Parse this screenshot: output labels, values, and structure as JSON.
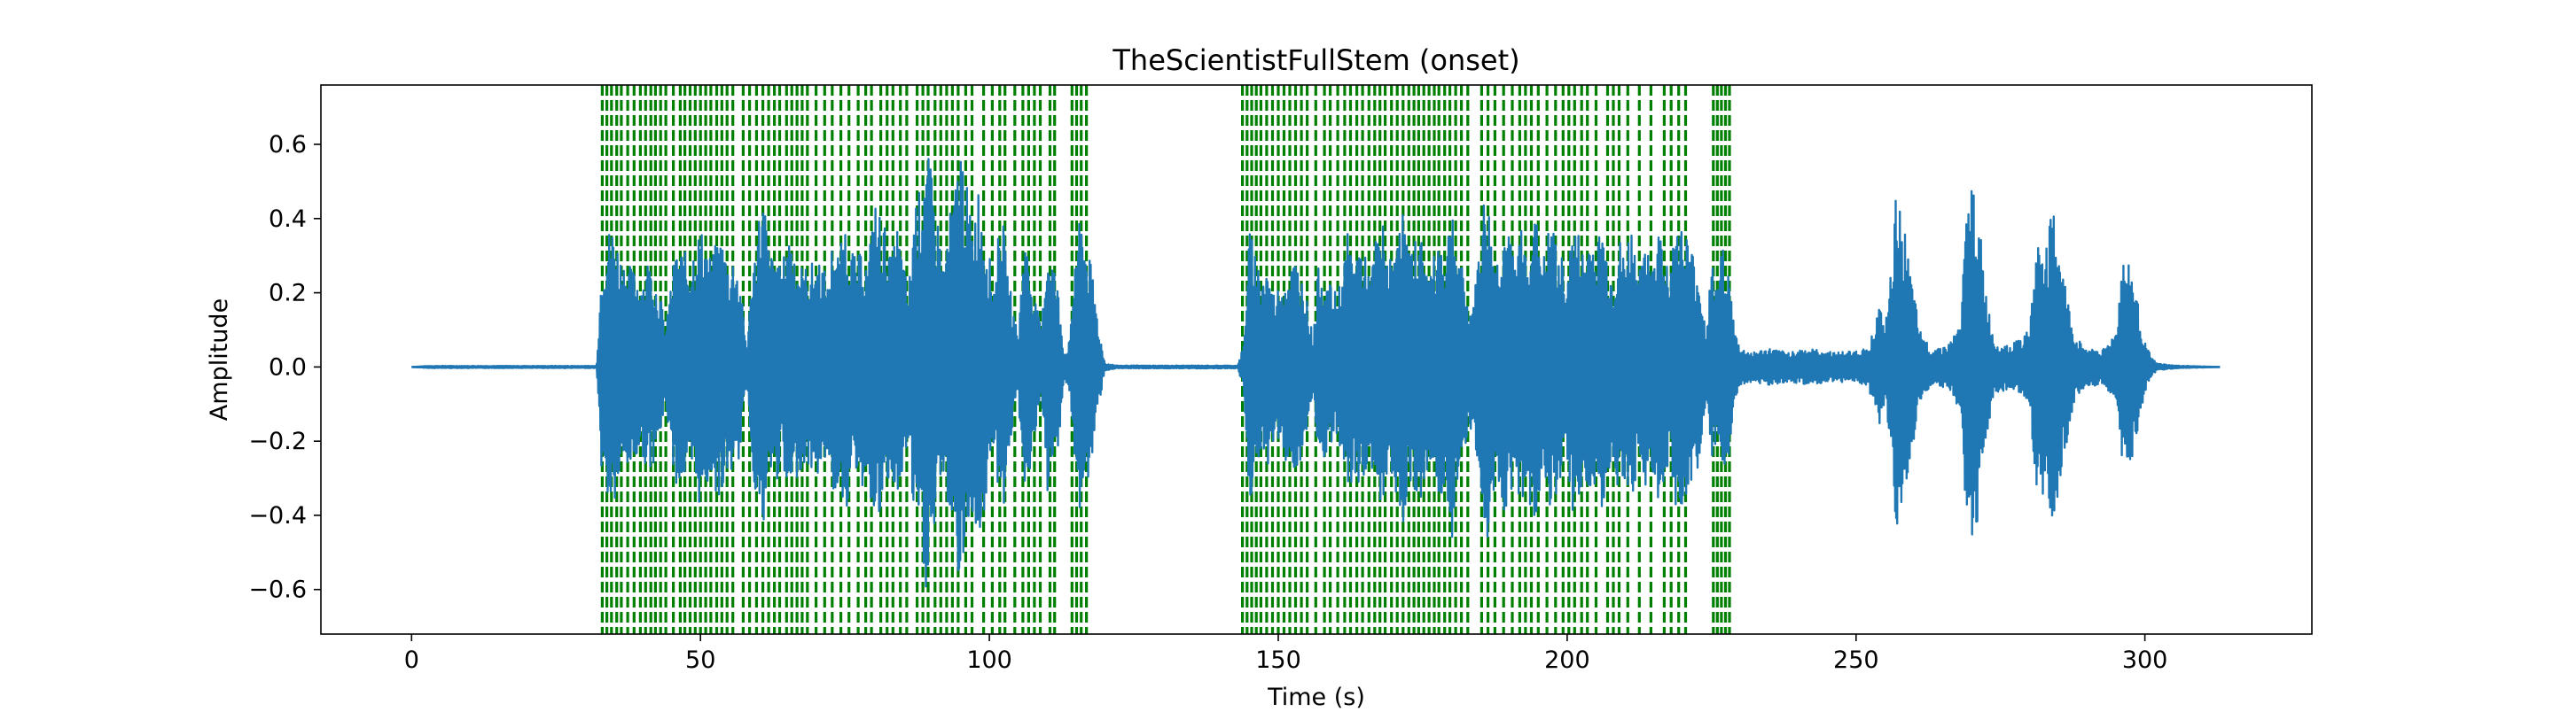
{
  "chart_data": {
    "type": "line",
    "title": "TheScientistFullStem (onset)",
    "xlabel": "Time (s)",
    "ylabel": "Amplitude",
    "xlim": [
      -15.7,
      328.9
    ],
    "ylim": [
      -0.72,
      0.76
    ],
    "xticks": [
      0,
      50,
      100,
      150,
      200,
      250,
      300
    ],
    "yticks": [
      -0.6,
      -0.4,
      -0.2,
      0.0,
      0.2,
      0.4,
      0.6
    ],
    "grid": false,
    "legend": "none",
    "colors": {
      "waveform": "#1f77b4",
      "onset": "#008000",
      "axes": "#000000"
    },
    "series": [
      {
        "kind": "waveform-envelope",
        "values": [
          [
            0,
            0.0
          ],
          [
            3,
            0.003
          ],
          [
            32,
            0.003
          ],
          [
            33,
            0.32
          ],
          [
            34,
            0.37
          ],
          [
            35,
            0.39
          ],
          [
            36,
            0.31
          ],
          [
            38,
            0.27
          ],
          [
            40,
            0.24
          ],
          [
            41,
            0.3
          ],
          [
            42,
            0.25
          ],
          [
            43,
            0.2
          ],
          [
            44,
            0.1
          ],
          [
            45,
            0.25
          ],
          [
            46,
            0.33
          ],
          [
            48,
            0.3
          ],
          [
            50,
            0.38
          ],
          [
            52,
            0.29
          ],
          [
            53,
            0.36
          ],
          [
            54,
            0.34
          ],
          [
            55,
            0.27
          ],
          [
            56,
            0.32
          ],
          [
            57,
            0.21
          ],
          [
            58,
            0.05
          ],
          [
            59,
            0.27
          ],
          [
            60,
            0.41
          ],
          [
            61,
            0.47
          ],
          [
            62,
            0.29
          ],
          [
            63,
            0.33
          ],
          [
            64,
            0.25
          ],
          [
            65,
            0.37
          ],
          [
            66,
            0.35
          ],
          [
            67,
            0.28
          ],
          [
            68,
            0.27
          ],
          [
            70,
            0.29
          ],
          [
            71,
            0.3
          ],
          [
            72,
            0.22
          ],
          [
            73,
            0.37
          ],
          [
            74,
            0.3
          ],
          [
            75,
            0.4
          ],
          [
            76,
            0.34
          ],
          [
            77,
            0.28
          ],
          [
            78,
            0.33
          ],
          [
            79,
            0.27
          ],
          [
            80,
            0.46
          ],
          [
            82,
            0.38
          ],
          [
            83,
            0.28
          ],
          [
            84,
            0.39
          ],
          [
            85,
            0.3
          ],
          [
            86,
            0.2
          ],
          [
            87,
            0.45
          ],
          [
            88,
            0.48
          ],
          [
            89,
            0.61
          ],
          [
            90,
            0.52
          ],
          [
            91,
            0.41
          ],
          [
            92,
            0.28
          ],
          [
            93,
            0.4
          ],
          [
            94,
            0.48
          ],
          [
            95,
            0.63
          ],
          [
            96,
            0.5
          ],
          [
            97,
            0.38
          ],
          [
            98,
            0.5
          ],
          [
            99,
            0.41
          ],
          [
            100,
            0.3
          ],
          [
            101,
            0.22
          ],
          [
            102,
            0.47
          ],
          [
            103,
            0.28
          ],
          [
            104,
            0.17
          ],
          [
            105,
            0.08
          ],
          [
            106,
            0.37
          ],
          [
            107,
            0.28
          ],
          [
            108,
            0.18
          ],
          [
            109,
            0.1
          ],
          [
            110,
            0.35
          ],
          [
            111,
            0.3
          ],
          [
            112,
            0.2
          ],
          [
            113,
            0.03
          ],
          [
            114,
            0.08
          ],
          [
            115,
            0.37
          ],
          [
            116,
            0.4
          ],
          [
            117,
            0.32
          ],
          [
            118,
            0.24
          ],
          [
            119,
            0.1
          ],
          [
            120,
            0.01
          ],
          [
            122,
            0.004
          ],
          [
            143,
            0.004
          ],
          [
            144,
            0.06
          ],
          [
            145,
            0.37
          ],
          [
            146,
            0.32
          ],
          [
            147,
            0.25
          ],
          [
            148,
            0.28
          ],
          [
            149,
            0.2
          ],
          [
            150,
            0.22
          ],
          [
            151,
            0.25
          ],
          [
            152,
            0.27
          ],
          [
            153,
            0.3
          ],
          [
            154,
            0.25
          ],
          [
            155,
            0.18
          ],
          [
            156,
            0.08
          ],
          [
            157,
            0.28
          ],
          [
            158,
            0.25
          ],
          [
            159,
            0.22
          ],
          [
            160,
            0.2
          ],
          [
            161,
            0.25
          ],
          [
            162,
            0.36
          ],
          [
            163,
            0.3
          ],
          [
            164,
            0.34
          ],
          [
            165,
            0.3
          ],
          [
            166,
            0.25
          ],
          [
            167,
            0.36
          ],
          [
            168,
            0.4
          ],
          [
            169,
            0.3
          ],
          [
            170,
            0.28
          ],
          [
            171,
            0.48
          ],
          [
            172,
            0.38
          ],
          [
            173,
            0.3
          ],
          [
            174,
            0.37
          ],
          [
            175,
            0.35
          ],
          [
            176,
            0.26
          ],
          [
            177,
            0.3
          ],
          [
            178,
            0.38
          ],
          [
            179,
            0.3
          ],
          [
            180,
            0.48
          ],
          [
            181,
            0.3
          ],
          [
            182,
            0.26
          ],
          [
            183,
            0.15
          ],
          [
            184,
            0.2
          ],
          [
            185,
            0.38
          ],
          [
            186,
            0.51
          ],
          [
            187,
            0.35
          ],
          [
            188,
            0.3
          ],
          [
            189,
            0.4
          ],
          [
            190,
            0.35
          ],
          [
            191,
            0.3
          ],
          [
            192,
            0.38
          ],
          [
            193,
            0.32
          ],
          [
            194,
            0.42
          ],
          [
            195,
            0.38
          ],
          [
            196,
            0.3
          ],
          [
            197,
            0.4
          ],
          [
            198,
            0.35
          ],
          [
            199,
            0.3
          ],
          [
            200,
            0.25
          ],
          [
            201,
            0.4
          ],
          [
            202,
            0.36
          ],
          [
            203,
            0.3
          ],
          [
            204,
            0.38
          ],
          [
            205,
            0.32
          ],
          [
            206,
            0.4
          ],
          [
            207,
            0.3
          ],
          [
            208,
            0.25
          ],
          [
            209,
            0.35
          ],
          [
            210,
            0.3
          ],
          [
            211,
            0.4
          ],
          [
            212,
            0.3
          ],
          [
            213,
            0.27
          ],
          [
            214,
            0.36
          ],
          [
            215,
            0.3
          ],
          [
            216,
            0.38
          ],
          [
            217,
            0.33
          ],
          [
            218,
            0.28
          ],
          [
            219,
            0.42
          ],
          [
            220,
            0.38
          ],
          [
            221,
            0.35
          ],
          [
            222,
            0.3
          ],
          [
            223,
            0.25
          ],
          [
            224,
            0.1
          ],
          [
            225,
            0.28
          ],
          [
            226,
            0.22
          ],
          [
            227,
            0.35
          ],
          [
            228,
            0.25
          ],
          [
            229,
            0.1
          ],
          [
            230,
            0.05
          ],
          [
            232,
            0.04
          ],
          [
            235,
            0.05
          ],
          [
            238,
            0.04
          ],
          [
            241,
            0.05
          ],
          [
            244,
            0.045
          ],
          [
            247,
            0.04
          ],
          [
            250,
            0.045
          ],
          [
            252,
            0.05
          ],
          [
            253,
            0.1
          ],
          [
            254,
            0.17
          ],
          [
            255,
            0.1
          ],
          [
            256,
            0.25
          ],
          [
            257,
            0.48
          ],
          [
            258,
            0.42
          ],
          [
            259,
            0.3
          ],
          [
            260,
            0.2
          ],
          [
            261,
            0.1
          ],
          [
            263,
            0.05
          ],
          [
            266,
            0.06
          ],
          [
            268,
            0.12
          ],
          [
            269,
            0.38
          ],
          [
            270,
            0.52
          ],
          [
            271,
            0.45
          ],
          [
            272,
            0.28
          ],
          [
            273,
            0.15
          ],
          [
            274,
            0.07
          ],
          [
            277,
            0.06
          ],
          [
            280,
            0.1
          ],
          [
            281,
            0.3
          ],
          [
            282,
            0.37
          ],
          [
            283,
            0.33
          ],
          [
            284,
            0.43
          ],
          [
            285,
            0.37
          ],
          [
            286,
            0.25
          ],
          [
            287,
            0.15
          ],
          [
            288,
            0.08
          ],
          [
            290,
            0.05
          ],
          [
            293,
            0.05
          ],
          [
            295,
            0.1
          ],
          [
            296,
            0.28
          ],
          [
            297,
            0.3
          ],
          [
            298,
            0.25
          ],
          [
            299,
            0.15
          ],
          [
            300,
            0.07
          ],
          [
            301,
            0.03
          ],
          [
            302,
            0.01
          ],
          [
            305,
            0.004
          ],
          [
            313,
            0.0
          ]
        ]
      }
    ],
    "onsets": [
      33.0,
      33.8,
      34.6,
      35.5,
      36.3,
      37.4,
      38.5,
      39.6,
      40.5,
      41.4,
      42.2,
      43.1,
      44.0,
      45.3,
      46.5,
      47.3,
      48.2,
      49.1,
      50.0,
      50.9,
      51.8,
      52.8,
      53.7,
      54.6,
      55.6,
      57.4,
      58.5,
      59.7,
      60.8,
      61.8,
      62.8,
      63.7,
      64.9,
      65.8,
      66.7,
      67.6,
      68.5,
      70.0,
      71.5,
      72.8,
      74.3,
      75.7,
      77.3,
      78.6,
      79.6,
      81.2,
      82.3,
      83.3,
      84.6,
      85.7,
      87.5,
      88.5,
      89.4,
      90.6,
      91.6,
      92.6,
      93.6,
      94.6,
      95.9,
      97.0,
      99.0,
      100.5,
      101.8,
      102.7,
      104.4,
      105.8,
      106.8,
      107.8,
      108.8,
      110.5,
      111.3,
      114.3,
      115.1,
      115.9,
      116.8,
      143.8,
      144.6,
      145.4,
      146.2,
      147.0,
      148.0,
      149.0,
      150.0,
      151.0,
      152.0,
      153.0,
      154.0,
      155.0,
      156.5,
      158.0,
      159.0,
      160.3,
      161.5,
      162.5,
      163.6,
      164.6,
      165.7,
      166.7,
      167.6,
      168.5,
      169.6,
      170.6,
      171.6,
      172.6,
      173.5,
      174.3,
      175.2,
      176.1,
      177.0,
      177.8,
      178.8,
      179.7,
      180.7,
      181.7,
      182.8,
      185.2,
      186.3,
      187.5,
      189.0,
      190.5,
      191.8,
      192.8,
      193.8,
      195.0,
      196.5,
      198.0,
      199.3,
      200.3,
      201.3,
      202.5,
      203.5,
      205.0,
      207.0,
      208.0,
      209.0,
      210.5,
      212.5,
      214.5,
      216.8,
      218.0,
      219.3,
      220.5,
      225.3,
      226.0,
      226.7,
      227.4,
      228.1
    ]
  }
}
